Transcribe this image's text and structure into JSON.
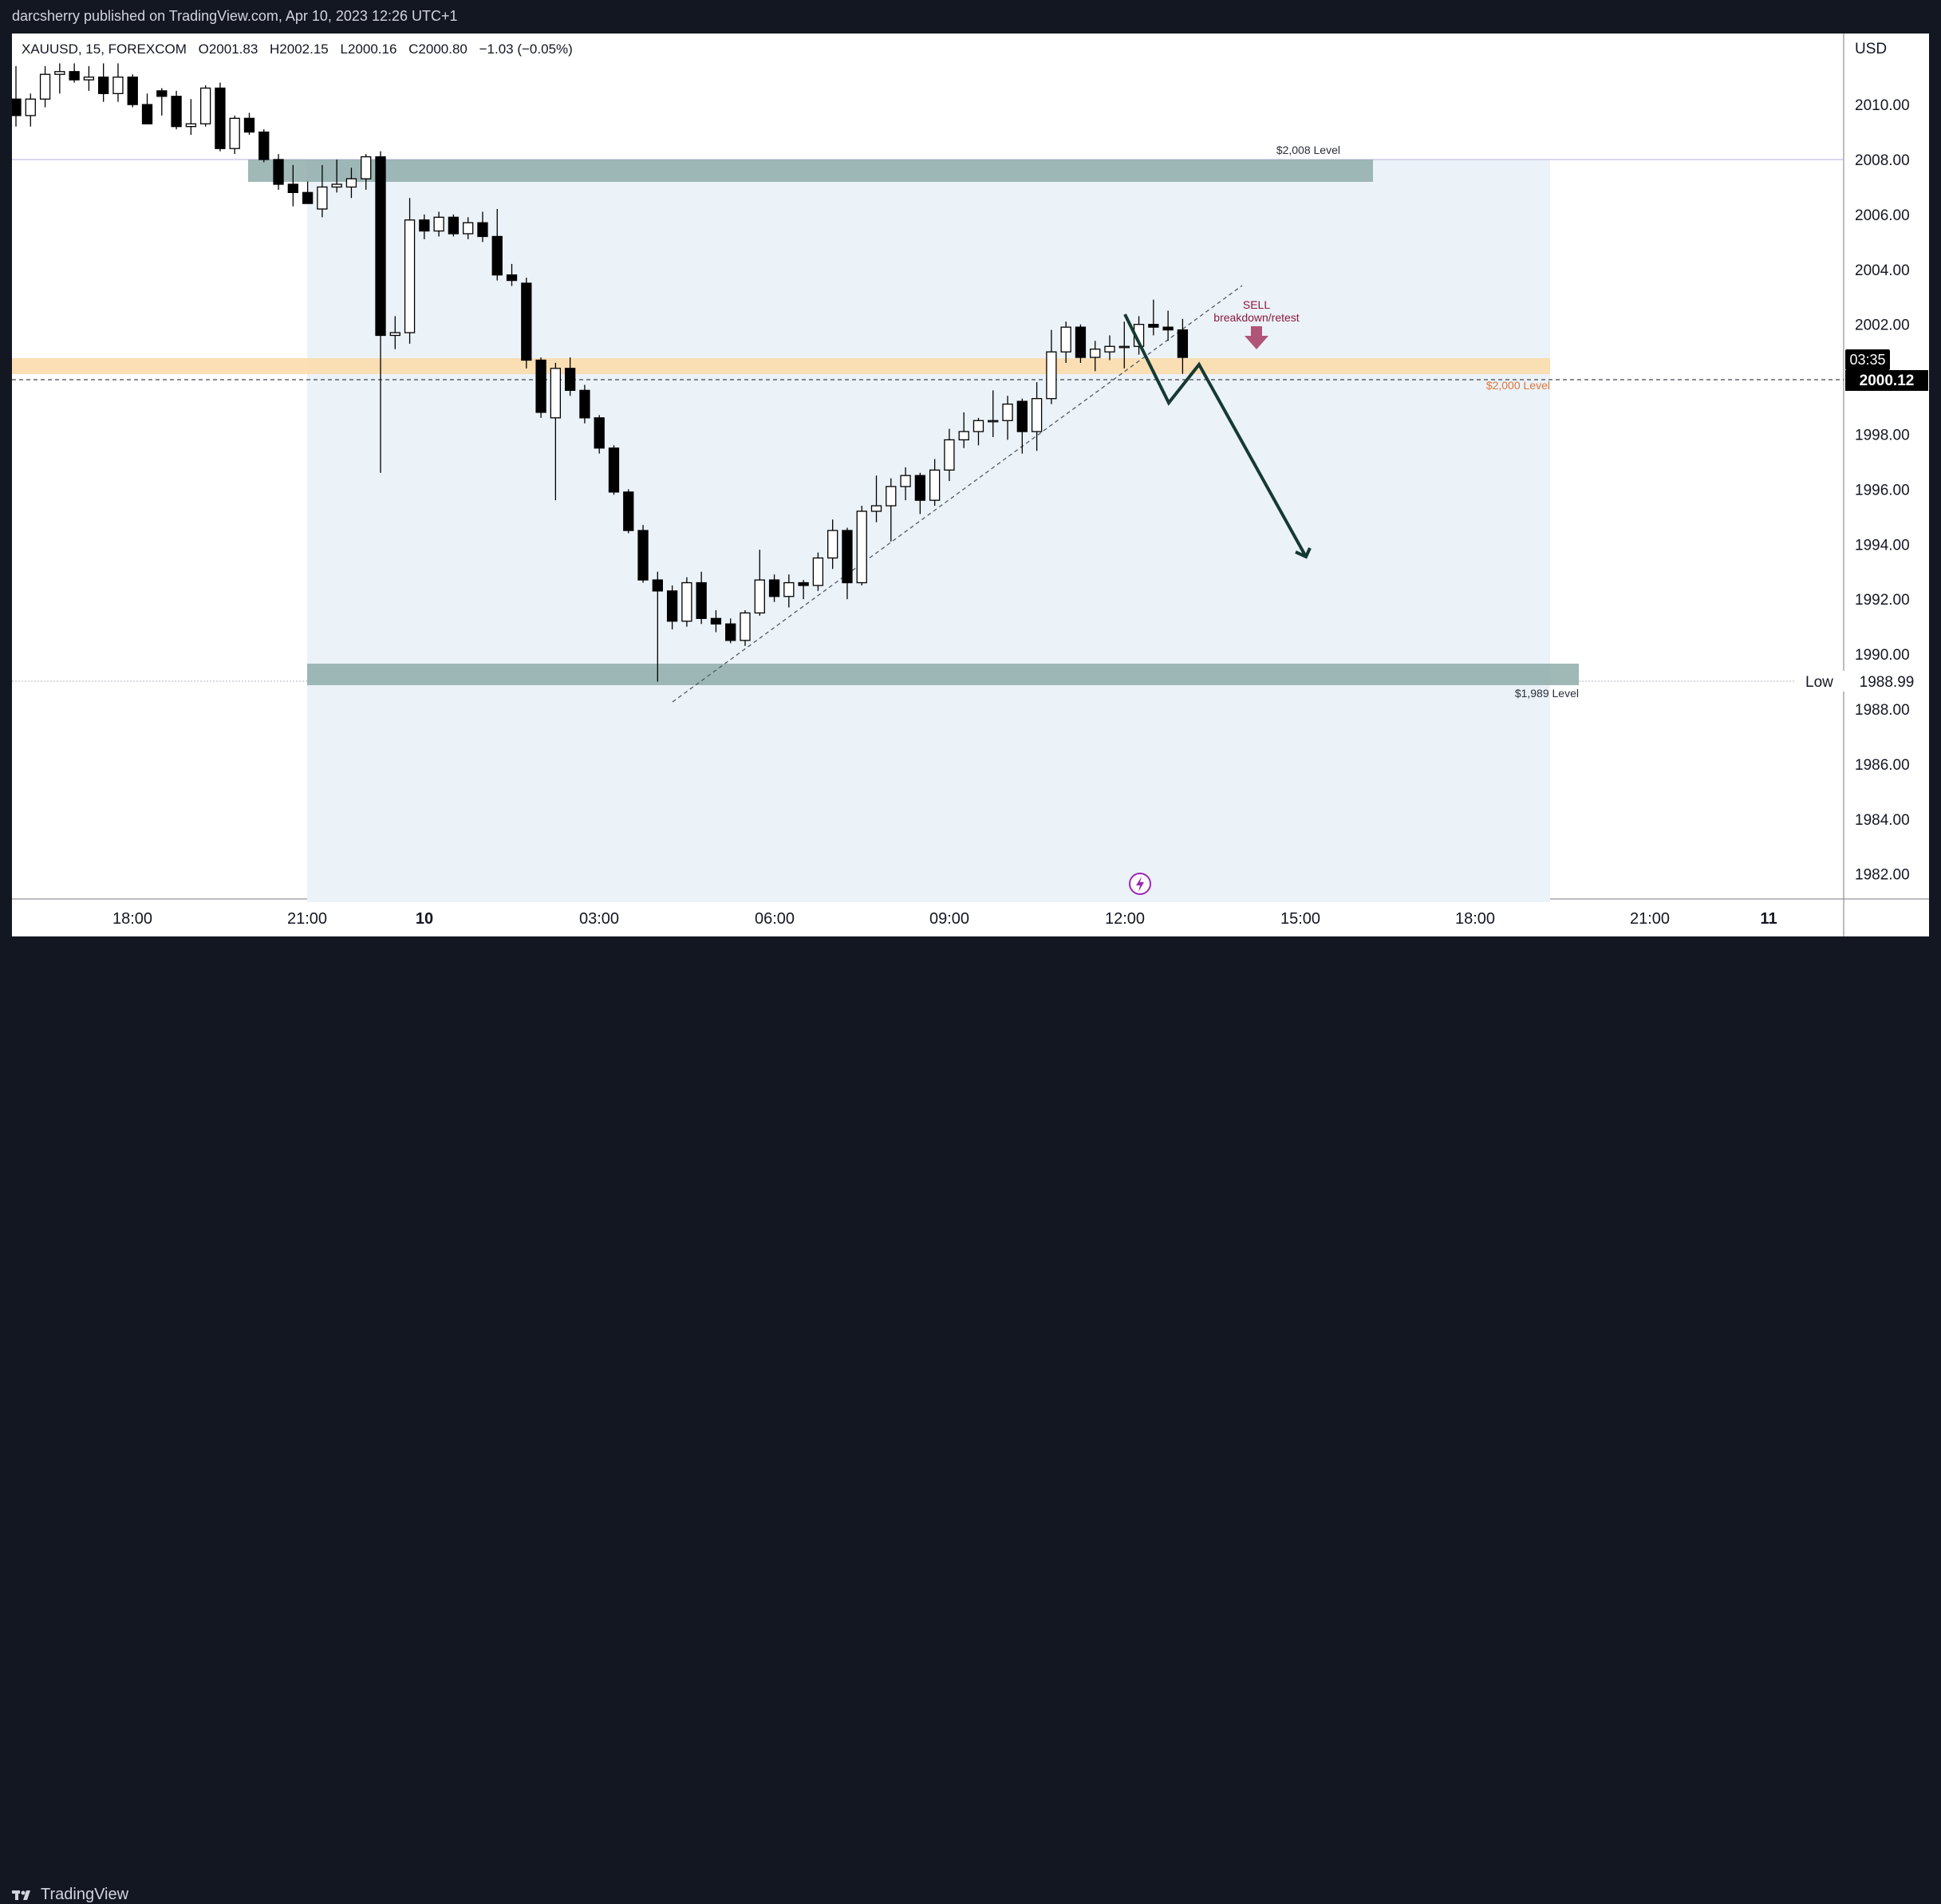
{
  "header": {
    "published_line": "darcsherry published on TradingView.com, Apr 10, 2023 12:26 UTC+1"
  },
  "legend": {
    "symbol_line": "XAUUSD, 15, FOREXCOM",
    "open": "O2001.83",
    "high": "H2002.15",
    "low": "L2000.16",
    "close": "C2000.80",
    "change": "−1.03 (−0.05%)"
  },
  "price_axis": {
    "currency": "USD",
    "ticks": [
      "2010.00",
      "2008.00",
      "2006.00",
      "2004.00",
      "2002.00",
      "1998.00",
      "1996.00",
      "1994.00",
      "1992.00",
      "1990.00",
      "1988.00",
      "1986.00",
      "1984.00",
      "1982.00"
    ],
    "countdown": "03:35",
    "last_price": "2000.12",
    "low_label": "Low",
    "low_value": "1988.99"
  },
  "time_axis": {
    "ticks": [
      "18:00",
      "21:00",
      "10",
      "03:00",
      "06:00",
      "09:00",
      "12:00",
      "15:00",
      "18:00",
      "21:00",
      "11"
    ]
  },
  "annotations": {
    "level_2008": "$2,008 Level",
    "level_2000": "$2,000 Level",
    "level_1989": "$1,989 Level",
    "sell_line1": "SELL",
    "sell_line2": "breakdown/retest"
  },
  "footer": {
    "brand": "TradingView"
  },
  "colors": {
    "up_candle": "#ffffff",
    "down_candle": "#000000",
    "zone_gray": "#8fadaa",
    "zone_orange": "#fcdcac",
    "sell_arrow": "#b05577",
    "projection_line": "#163a33",
    "level_orange_text": "#e0763a",
    "sell_text": "#8a1a3c"
  },
  "chart_data": {
    "type": "candlestick",
    "symbol": "XAUUSD",
    "interval": "15",
    "ylim": [
      1981,
      2011.5
    ],
    "x_ticks": [
      "18:00",
      "21:00",
      "10",
      "03:00",
      "06:00",
      "09:00",
      "12:00",
      "15:00",
      "18:00",
      "21:00",
      "11"
    ],
    "candles": [
      [
        2010.2,
        2011.4,
        2009.2,
        2009.6
      ],
      [
        2009.6,
        2010.4,
        2009.2,
        2010.2
      ],
      [
        2010.2,
        2011.4,
        2009.9,
        2011.1
      ],
      [
        2011.1,
        2011.5,
        2010.4,
        2011.2
      ],
      [
        2011.2,
        2011.5,
        2010.8,
        2010.9
      ],
      [
        2010.9,
        2011.4,
        2010.5,
        2011.0
      ],
      [
        2011.0,
        2011.5,
        2010.1,
        2010.4
      ],
      [
        2010.4,
        2011.5,
        2010.1,
        2011.0
      ],
      [
        2011.0,
        2011.1,
        2009.9,
        2010.0
      ],
      [
        2010.0,
        2010.4,
        2009.4,
        2009.3
      ],
      [
        2010.5,
        2010.6,
        2009.6,
        2010.3
      ],
      [
        2010.3,
        2010.5,
        2009.1,
        2009.2
      ],
      [
        2009.2,
        2010.2,
        2008.9,
        2009.3
      ],
      [
        2009.3,
        2010.7,
        2009.2,
        2010.6
      ],
      [
        2010.6,
        2010.8,
        2008.3,
        2008.4
      ],
      [
        2008.4,
        2009.6,
        2008.2,
        2009.5
      ],
      [
        2009.5,
        2009.7,
        2008.9,
        2009.0
      ],
      [
        2009.0,
        2009.1,
        2007.9,
        2008.0
      ],
      [
        2008.0,
        2008.2,
        2006.9,
        2007.1
      ],
      [
        2007.1,
        2007.8,
        2006.3,
        2006.8
      ],
      [
        2006.8,
        2007.2,
        2006.4,
        2006.4
      ],
      [
        2006.2,
        2007.8,
        2005.9,
        2007.0
      ],
      [
        2007.0,
        2008.0,
        2006.8,
        2007.1
      ],
      [
        2007.0,
        2007.7,
        2006.6,
        2007.3
      ],
      [
        2007.3,
        2008.2,
        2006.9,
        2008.1
      ],
      [
        2008.1,
        2008.3,
        1996.6,
        2001.6
      ],
      [
        2001.6,
        2002.3,
        2001.1,
        2001.7
      ],
      [
        2001.7,
        2006.6,
        2001.3,
        2005.8
      ],
      [
        2005.8,
        2006.0,
        2005.1,
        2005.4
      ],
      [
        2005.4,
        2006.1,
        2005.2,
        2005.9
      ],
      [
        2005.9,
        2006.0,
        2005.2,
        2005.3
      ],
      [
        2005.3,
        2005.9,
        2005.1,
        2005.7
      ],
      [
        2005.7,
        2006.1,
        2005.0,
        2005.2
      ],
      [
        2005.2,
        2006.2,
        2003.6,
        2003.8
      ],
      [
        2003.8,
        2004.2,
        2003.4,
        2003.6
      ],
      [
        2003.5,
        2003.7,
        2000.4,
        2000.7
      ],
      [
        2000.7,
        2000.8,
        1998.6,
        1998.8
      ],
      [
        1998.6,
        2000.6,
        1995.6,
        2000.4
      ],
      [
        2000.4,
        2000.8,
        1999.4,
        1999.6
      ],
      [
        1999.6,
        1999.8,
        1998.4,
        1998.6
      ],
      [
        1998.6,
        1998.7,
        1997.3,
        1997.5
      ],
      [
        1997.5,
        1997.6,
        1995.8,
        1995.9
      ],
      [
        1995.9,
        1996.0,
        1994.4,
        1994.5
      ],
      [
        1994.5,
        1994.7,
        1992.6,
        1992.7
      ],
      [
        1992.7,
        1993.0,
        1989.0,
        1992.3
      ],
      [
        1992.3,
        1992.5,
        1990.9,
        1991.2
      ],
      [
        1991.2,
        1992.8,
        1991.0,
        1992.6
      ],
      [
        1992.6,
        1993.0,
        1991.1,
        1991.3
      ],
      [
        1991.3,
        1991.6,
        1990.8,
        1991.1
      ],
      [
        1991.1,
        1991.3,
        1990.4,
        1990.5
      ],
      [
        1990.5,
        1991.6,
        1990.3,
        1991.5
      ],
      [
        1991.5,
        1993.8,
        1991.4,
        1992.7
      ],
      [
        1992.7,
        1992.9,
        1991.9,
        1992.1
      ],
      [
        1992.1,
        1992.9,
        1991.7,
        1992.6
      ],
      [
        1992.6,
        1992.7,
        1992.0,
        1992.5
      ],
      [
        1992.5,
        1993.7,
        1992.3,
        1993.5
      ],
      [
        1993.5,
        1994.9,
        1993.1,
        1994.5
      ],
      [
        1994.5,
        1994.6,
        1992.0,
        1992.6
      ],
      [
        1992.6,
        1995.4,
        1992.5,
        1995.2
      ],
      [
        1995.2,
        1996.5,
        1994.8,
        1995.4
      ],
      [
        1995.4,
        1996.4,
        1994.1,
        1996.1
      ],
      [
        1996.1,
        1996.8,
        1995.6,
        1996.5
      ],
      [
        1996.5,
        1996.6,
        1995.1,
        1995.6
      ],
      [
        1995.6,
        1997.1,
        1995.4,
        1996.7
      ],
      [
        1996.7,
        1998.2,
        1996.3,
        1997.8
      ],
      [
        1997.8,
        1998.8,
        1997.5,
        1998.1
      ],
      [
        1998.1,
        1998.6,
        1997.6,
        1998.5
      ],
      [
        1998.5,
        1999.6,
        1997.9,
        1998.5
      ],
      [
        1998.5,
        1999.4,
        1997.8,
        1999.1
      ],
      [
        1999.2,
        1999.3,
        1997.3,
        1998.1
      ],
      [
        1998.1,
        1999.9,
        1997.4,
        1999.3
      ],
      [
        1999.3,
        2001.8,
        1999.1,
        2001.0
      ],
      [
        2001.0,
        2002.1,
        2000.6,
        2001.9
      ],
      [
        2001.9,
        2002.0,
        2000.6,
        2000.8
      ],
      [
        2000.8,
        2001.4,
        2000.3,
        2001.1
      ],
      [
        2001.0,
        2001.6,
        2000.7,
        2001.2
      ],
      [
        2001.2,
        2002.1,
        2000.4,
        2001.2
      ],
      [
        2001.2,
        2002.3,
        2000.9,
        2002.0
      ],
      [
        2002.0,
        2002.9,
        2001.6,
        2001.9
      ],
      [
        2001.9,
        2002.5,
        2001.4,
        2001.8
      ],
      [
        2001.8,
        2002.2,
        2000.2,
        2000.8
      ]
    ]
  }
}
